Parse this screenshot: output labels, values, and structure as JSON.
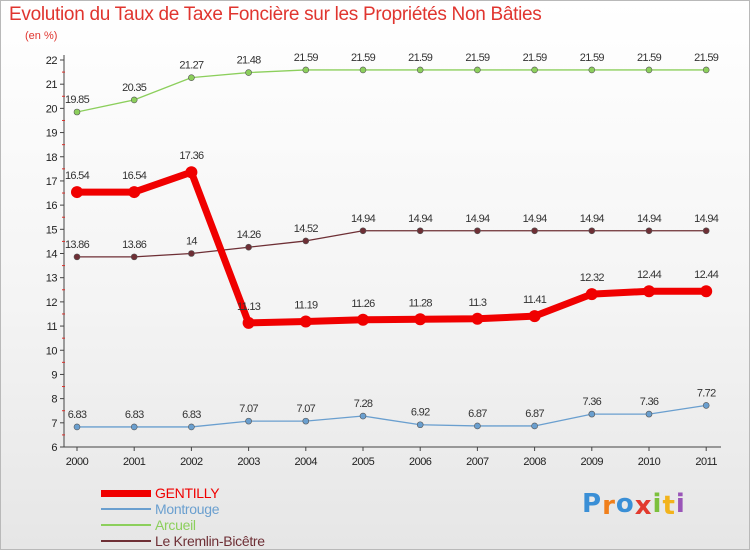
{
  "chart_data": {
    "type": "line",
    "title": "Evolution du Taux de Taxe Foncière sur les Propriétés Non Bâties",
    "ylabel": "(en %)",
    "xlabel": "",
    "ylim": [
      6,
      22
    ],
    "yticks": [
      "6",
      "7",
      "8",
      "9",
      "10",
      "11",
      "12",
      "13",
      "14",
      "15",
      "16",
      "17",
      "18",
      "19",
      "20",
      "21",
      "22"
    ],
    "categories": [
      "2000",
      "2001",
      "2002",
      "2003",
      "2004",
      "2005",
      "2006",
      "2007",
      "2008",
      "2009",
      "2010",
      "2011"
    ],
    "grid": false,
    "legend_position": "bottom-left",
    "series": [
      {
        "name": "Arcueil",
        "color": "#8ccf5c",
        "emphasis": false,
        "values": [
          19.85,
          20.35,
          21.27,
          21.48,
          21.59,
          21.59,
          21.59,
          21.59,
          21.59,
          21.59,
          21.59,
          21.59
        ],
        "labels": [
          "19.85",
          "20.35",
          "21.27",
          "21.48",
          "21.59",
          "21.59",
          "21.59",
          "21.59",
          "21.59",
          "21.59",
          "21.59",
          "21.59"
        ]
      },
      {
        "name": "Le Kremlin-Bicêtre",
        "color": "#6e2f35",
        "emphasis": false,
        "values": [
          13.86,
          13.86,
          14,
          14.26,
          14.52,
          14.94,
          14.94,
          14.94,
          14.94,
          14.94,
          14.94,
          14.94
        ],
        "labels": [
          "13.86",
          "13.86",
          "14",
          "14.26",
          "14.52",
          "14.94",
          "14.94",
          "14.94",
          "14.94",
          "14.94",
          "14.94",
          "14.94"
        ]
      },
      {
        "name": "Montrouge",
        "color": "#6a9fcf",
        "emphasis": false,
        "values": [
          6.83,
          6.83,
          6.83,
          7.07,
          7.07,
          7.28,
          6.92,
          6.87,
          6.87,
          7.36,
          7.36,
          7.72
        ],
        "labels": [
          "6.83",
          "6.83",
          "6.83",
          "7.07",
          "7.07",
          "7.28",
          "6.92",
          "6.87",
          "6.87",
          "7.36",
          "7.36",
          "7.72"
        ]
      },
      {
        "name": "GENTILLY",
        "color": "#f00000",
        "emphasis": true,
        "values": [
          16.54,
          16.54,
          17.36,
          11.13,
          11.19,
          11.26,
          11.28,
          11.3,
          11.41,
          12.32,
          12.44,
          12.44
        ],
        "labels": [
          "16.54",
          "16.54",
          "17.36",
          "11.13",
          "11.19",
          "11.26",
          "11.28",
          "11.3",
          "11.41",
          "12.32",
          "12.44",
          "12.44"
        ]
      }
    ]
  },
  "legend": [
    {
      "name": "GENTILLY",
      "color": "#f00000",
      "thickness": 7
    },
    {
      "name": "Montrouge",
      "color": "#6a9fcf",
      "thickness": 2
    },
    {
      "name": "Arcueil",
      "color": "#8ccf5c",
      "thickness": 2
    },
    {
      "name": "Le Kremlin-Bicêtre",
      "color": "#6e2f35",
      "thickness": 2
    }
  ],
  "brand": {
    "text": "Proxiti",
    "letters": [
      "P",
      "r",
      "o",
      "x",
      "i",
      "t",
      "i"
    ],
    "colors": [
      "#3a8fd6",
      "#f07f1b",
      "#3a8fd6",
      "#e23a2e",
      "#7cc03c",
      "#f2b31c",
      "#9a55b8"
    ]
  }
}
